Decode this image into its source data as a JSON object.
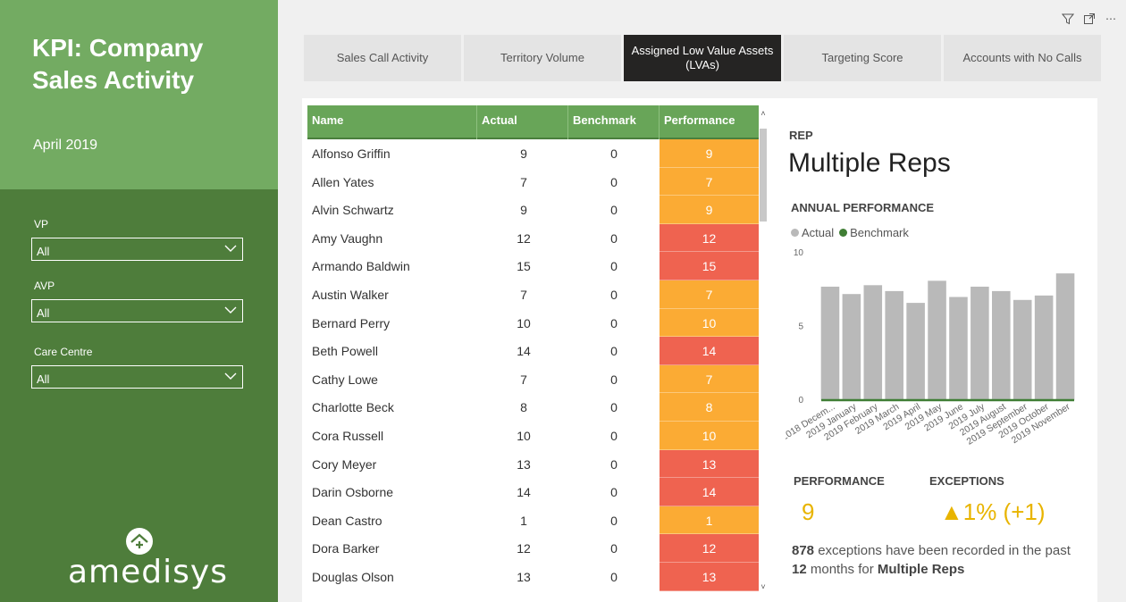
{
  "sidebar": {
    "title": "KPI: Company Sales Activity",
    "date": "April 2019",
    "filters": [
      {
        "label": "VP",
        "value": "All"
      },
      {
        "label": "AVP",
        "value": "All"
      },
      {
        "label": "Care Centre",
        "value": "All"
      }
    ],
    "logo_text": "amedisys"
  },
  "top_icons": [
    "filter-icon",
    "focus-mode-icon",
    "more-options-icon"
  ],
  "tabs": [
    {
      "label": "Sales Call Activity",
      "active": false
    },
    {
      "label": "Territory Volume",
      "active": false
    },
    {
      "label": "Assigned Low Value Assets (LVAs)",
      "active": true
    },
    {
      "label": "Targeting Score",
      "active": false
    },
    {
      "label": "Accounts with No Calls",
      "active": false
    }
  ],
  "table": {
    "columns": [
      "Name",
      "Actual",
      "Benchmark",
      "Performance"
    ],
    "rows": [
      {
        "name": "Alfonso Griffin",
        "actual": "9",
        "benchmark": "0",
        "performance": "9",
        "level": "orange"
      },
      {
        "name": "Allen Yates",
        "actual": "7",
        "benchmark": "0",
        "performance": "7",
        "level": "orange"
      },
      {
        "name": "Alvin Schwartz",
        "actual": "9",
        "benchmark": "0",
        "performance": "9",
        "level": "orange"
      },
      {
        "name": "Amy Vaughn",
        "actual": "12",
        "benchmark": "0",
        "performance": "12",
        "level": "red"
      },
      {
        "name": "Armando Baldwin",
        "actual": "15",
        "benchmark": "0",
        "performance": "15",
        "level": "red"
      },
      {
        "name": "Austin Walker",
        "actual": "7",
        "benchmark": "0",
        "performance": "7",
        "level": "orange"
      },
      {
        "name": "Bernard Perry",
        "actual": "10",
        "benchmark": "0",
        "performance": "10",
        "level": "orange"
      },
      {
        "name": "Beth Powell",
        "actual": "14",
        "benchmark": "0",
        "performance": "14",
        "level": "red"
      },
      {
        "name": "Cathy Lowe",
        "actual": "7",
        "benchmark": "0",
        "performance": "7",
        "level": "orange"
      },
      {
        "name": "Charlotte Beck",
        "actual": "8",
        "benchmark": "0",
        "performance": "8",
        "level": "orange"
      },
      {
        "name": "Cora Russell",
        "actual": "10",
        "benchmark": "0",
        "performance": "10",
        "level": "orange"
      },
      {
        "name": "Cory Meyer",
        "actual": "13",
        "benchmark": "0",
        "performance": "13",
        "level": "red"
      },
      {
        "name": "Darin Osborne",
        "actual": "14",
        "benchmark": "0",
        "performance": "14",
        "level": "red"
      },
      {
        "name": "Dean Castro",
        "actual": "1",
        "benchmark": "0",
        "performance": "1",
        "level": "orange"
      },
      {
        "name": "Dora Barker",
        "actual": "12",
        "benchmark": "0",
        "performance": "12",
        "level": "red"
      },
      {
        "name": "Douglas Olson",
        "actual": "13",
        "benchmark": "0",
        "performance": "13",
        "level": "red"
      }
    ]
  },
  "colors": {
    "orange": "#fbab34",
    "red": "#ef6350",
    "actual_series": "#b9b9b9",
    "benchmark_series": "#3f7d34",
    "accent_yellow": "#e8b400"
  },
  "card": {
    "rep_label": "REP",
    "rep_name": "Multiple Reps",
    "annual_label": "ANNUAL PERFORMANCE",
    "legend_actual": "Actual",
    "legend_benchmark": "Benchmark",
    "performance_label": "PERFORMANCE",
    "performance_value": "9",
    "exceptions_label": "EXCEPTIONS",
    "exceptions_value": "▲1% (+1)",
    "summary_count": "878",
    "summary_mid": " exceptions have been recorded in the past ",
    "summary_months": "12",
    "summary_end": " months for ",
    "summary_rep": "Multiple Reps"
  },
  "chart_data": {
    "type": "bar",
    "categories": [
      "2018 Decem...",
      "2019 January",
      "2019 February",
      "2019 March",
      "2019 April",
      "2019 May",
      "2019 June",
      "2019 July",
      "2019 August",
      "2019 September",
      "2019 October",
      "2019 November"
    ],
    "series": [
      {
        "name": "Actual",
        "values": [
          7.7,
          7.2,
          7.8,
          7.4,
          6.6,
          8.1,
          7.0,
          7.7,
          7.4,
          6.8,
          7.1,
          8.6
        ]
      },
      {
        "name": "Benchmark",
        "values": [
          0,
          0,
          0,
          0,
          0,
          0,
          0,
          0,
          0,
          0,
          0,
          0
        ]
      }
    ],
    "yticks": [
      0,
      5,
      10
    ],
    "ylim": [
      0,
      10
    ],
    "grid": false,
    "legend": "top-left"
  }
}
